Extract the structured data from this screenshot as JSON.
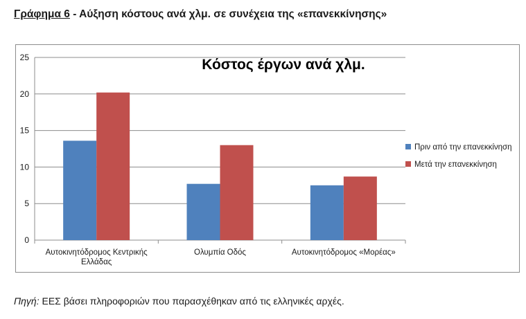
{
  "page": {
    "heading_label": "Γράφημα 6",
    "heading_text": " - Αύξηση κόστους ανά χλμ. σε συνέχεια της «επανεκκίνησης»",
    "source_prefix": "Πηγή:",
    "source_text": " ΕΕΣ βάσει πληροφοριών που παρασχέθηκαν από τις ελληνικές αρχές."
  },
  "colors": {
    "series_before": "#4f81bd",
    "series_after": "#c0504d",
    "grid": "#8c8c8c",
    "text": "#1a1a1a"
  },
  "chart_data": {
    "type": "bar",
    "title": "Κόστος έργων ανά χλμ.",
    "xlabel": "",
    "ylabel": "",
    "categories": [
      [
        "Αυτοκινητόδρομος Κεντρικής",
        "Ελλάδας"
      ],
      [
        "Ολυμπία Οδός"
      ],
      [
        "Αυτοκινητόδρομος «Μορέας»"
      ]
    ],
    "series": [
      {
        "name": "Πριν από την επανεκκίνηση",
        "values": [
          13.6,
          7.7,
          7.5
        ]
      },
      {
        "name": "Μετά την επανεκκίνηση",
        "values": [
          20.2,
          13.0,
          8.7
        ]
      }
    ],
    "ylim": [
      0,
      25
    ],
    "yticks": [
      "0",
      "5",
      "10",
      "15",
      "20",
      "25"
    ],
    "grid": true,
    "legend_position": "right"
  }
}
